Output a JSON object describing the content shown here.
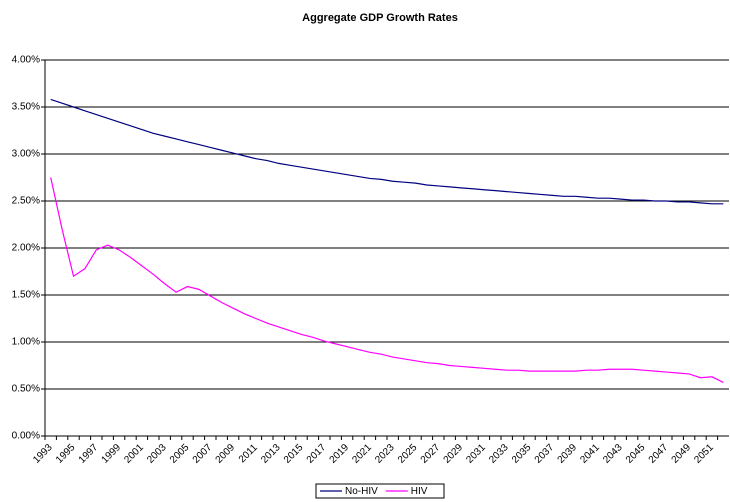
{
  "chart_data": {
    "type": "line",
    "title": "Aggregate GDP Growth Rates",
    "categories": [
      "1993",
      null,
      "1995",
      null,
      "1997",
      null,
      "1999",
      null,
      "2001",
      null,
      "2003",
      null,
      "2005",
      null,
      "2007",
      null,
      "2009",
      null,
      "2011",
      null,
      "2013",
      null,
      "2015",
      null,
      "2017",
      null,
      "2019",
      null,
      "2021",
      null,
      "2023",
      null,
      "2025",
      null,
      "2027",
      null,
      "2029",
      null,
      "2031",
      null,
      "2033",
      null,
      "2035",
      null,
      "2037",
      null,
      "2039",
      null,
      "2041",
      null,
      "2043",
      null,
      "2045",
      null,
      "2047",
      null,
      "2049",
      null,
      "2051",
      null
    ],
    "series": [
      {
        "name": "No-HIV",
        "color": "#000080",
        "values": [
          3.58,
          3.54,
          3.5,
          3.46,
          3.42,
          3.38,
          3.34,
          3.3,
          3.26,
          3.22,
          3.19,
          3.16,
          3.13,
          3.1,
          3.07,
          3.04,
          3.01,
          2.98,
          2.95,
          2.93,
          2.9,
          2.88,
          2.86,
          2.84,
          2.82,
          2.8,
          2.78,
          2.76,
          2.74,
          2.73,
          2.71,
          2.7,
          2.69,
          2.67,
          2.66,
          2.65,
          2.64,
          2.63,
          2.62,
          2.61,
          2.6,
          2.59,
          2.58,
          2.57,
          2.56,
          2.55,
          2.55,
          2.54,
          2.53,
          2.53,
          2.52,
          2.51,
          2.51,
          2.5,
          2.5,
          2.49,
          2.49,
          2.48,
          2.47,
          2.47
        ]
      },
      {
        "name": "HIV",
        "color": "#ff00ff",
        "values": [
          2.75,
          2.2,
          1.7,
          1.78,
          1.98,
          2.03,
          1.98,
          1.9,
          1.81,
          1.72,
          1.62,
          1.53,
          1.59,
          1.56,
          1.49,
          1.42,
          1.36,
          1.3,
          1.25,
          1.2,
          1.16,
          1.12,
          1.08,
          1.05,
          1.01,
          0.98,
          0.95,
          0.92,
          0.89,
          0.87,
          0.84,
          0.82,
          0.8,
          0.78,
          0.77,
          0.75,
          0.74,
          0.73,
          0.72,
          0.71,
          0.7,
          0.7,
          0.69,
          0.69,
          0.69,
          0.69,
          0.69,
          0.7,
          0.7,
          0.71,
          0.71,
          0.71,
          0.7,
          0.69,
          0.68,
          0.67,
          0.66,
          0.62,
          0.63,
          0.57
        ]
      }
    ],
    "ylim": [
      0,
      4
    ],
    "yticks": [
      {
        "value": 0,
        "label": "0.00%"
      },
      {
        "value": 0.5,
        "label": "0.50%"
      },
      {
        "value": 1,
        "label": "1.00%"
      },
      {
        "value": 1.5,
        "label": "1.50%"
      },
      {
        "value": 2,
        "label": "2.00%"
      },
      {
        "value": 2.5,
        "label": "2.50%"
      },
      {
        "value": 3,
        "label": "3.00%"
      },
      {
        "value": 3.5,
        "label": "3.50%"
      },
      {
        "value": 4,
        "label": "4.00%"
      }
    ],
    "grid": true,
    "legend": "bottom"
  }
}
